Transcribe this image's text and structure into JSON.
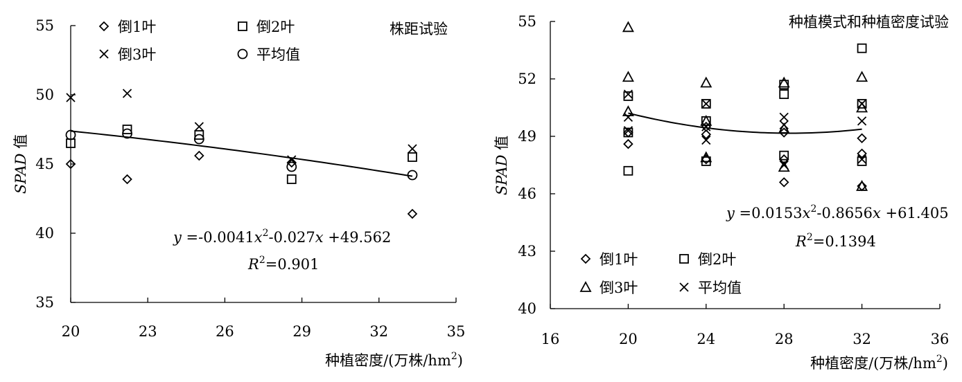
{
  "chart_data": [
    {
      "type": "scatter",
      "title": "株距试验",
      "xlabel": "种植密度/(万株/hm²)",
      "xlabel_main": "种植密度/(万株/hm",
      "xlabel_sup": "2",
      "xlabel_close": ")",
      "ylabel": "SPAD 值",
      "ylabel_italic": "SPAD",
      "ylabel_rest": " 值",
      "xlim": [
        20,
        35
      ],
      "ylim": [
        35,
        55
      ],
      "xticks": [
        20,
        23,
        26,
        29,
        32,
        35
      ],
      "yticks": [
        35,
        40,
        45,
        50,
        55
      ],
      "grid": false,
      "legend_position": "top",
      "series": [
        {
          "name": "倒1叶",
          "marker": "diamond",
          "x": [
            20,
            22.2,
            25,
            28.6,
            33.3
          ],
          "y": [
            45.0,
            43.9,
            45.6,
            45.1,
            41.4
          ]
        },
        {
          "name": "倒2叶",
          "marker": "square",
          "x": [
            20,
            22.2,
            25,
            28.6,
            33.3
          ],
          "y": [
            46.5,
            47.5,
            47.1,
            43.9,
            45.5
          ]
        },
        {
          "name": "倒3叶",
          "marker": "x",
          "x": [
            20,
            22.2,
            25,
            28.6,
            33.3
          ],
          "y": [
            49.8,
            50.1,
            47.7,
            45.3,
            46.1
          ]
        },
        {
          "name": "平均值",
          "marker": "circle",
          "x": [
            20,
            22.2,
            25,
            28.6,
            33.3
          ],
          "y": [
            47.1,
            47.2,
            46.8,
            44.8,
            44.2
          ]
        }
      ],
      "trendline": {
        "type": "polynomial",
        "degree": 2,
        "coefficients": [
          -0.0041,
          -0.027,
          49.562
        ],
        "x_range": [
          20,
          33.3
        ]
      },
      "equation": {
        "y": "y",
        "eq": " =-0.0041",
        "x1": "x",
        "sup1": "2",
        "mid": "-0.027",
        "x2": "x",
        "tail": " +49.562"
      },
      "r2": {
        "r": "R",
        "sup": "2",
        "value": "=0.901"
      }
    },
    {
      "type": "scatter",
      "title": "种植模式和种植密度试验",
      "xlabel": "种植密度/(万株/hm²)",
      "xlabel_main": "种植密度/(万株/hm",
      "xlabel_sup": "2",
      "xlabel_close": ")",
      "ylabel": "SPAD 值",
      "ylabel_italic": "SPAD",
      "ylabel_rest": " 值",
      "xlim": [
        16,
        36
      ],
      "ylim": [
        40,
        55
      ],
      "xticks": [
        16,
        20,
        24,
        28,
        32,
        36
      ],
      "yticks": [
        40,
        43,
        46,
        49,
        52,
        55
      ],
      "grid": false,
      "legend_position": "bottom-left",
      "series": [
        {
          "name": "倒1叶",
          "marker": "diamond",
          "x": [
            20,
            20,
            24,
            24,
            24,
            28,
            28,
            28,
            32,
            32,
            32
          ],
          "y": [
            48.6,
            49.2,
            47.8,
            49.1,
            49.5,
            46.6,
            49.2,
            47.8,
            46.4,
            48.1,
            48.9
          ]
        },
        {
          "name": "倒2叶",
          "marker": "square",
          "x": [
            20,
            20,
            20,
            24,
            24,
            24,
            28,
            28,
            28,
            32,
            32,
            32
          ],
          "y": [
            47.2,
            49.2,
            51.1,
            47.7,
            49.8,
            50.7,
            48.0,
            51.2,
            51.7,
            47.7,
            50.7,
            53.6
          ]
        },
        {
          "name": "倒3叶",
          "marker": "triangle",
          "x": [
            20,
            20,
            20,
            24,
            24,
            24,
            28,
            28,
            28,
            32,
            32,
            32
          ],
          "y": [
            50.3,
            52.1,
            54.7,
            47.9,
            49.8,
            51.8,
            47.4,
            49.4,
            51.8,
            46.4,
            50.5,
            52.1
          ]
        },
        {
          "name": "平均值",
          "marker": "x",
          "x": [
            20,
            20,
            20,
            24,
            24,
            24,
            28,
            28,
            28,
            32,
            32,
            32
          ],
          "y": [
            49.3,
            50.0,
            51.2,
            48.8,
            49.5,
            50.7,
            47.5,
            49.6,
            50.0,
            47.8,
            49.8,
            50.7
          ]
        }
      ],
      "trendline": {
        "type": "polynomial",
        "degree": 2,
        "coefficients": [
          0.0153,
          -0.8656,
          61.405
        ],
        "x_range": [
          20,
          32
        ]
      },
      "equation": {
        "y": "y",
        "eq": " =0.0153",
        "x1": "x",
        "sup1": "2",
        "mid": "-0.8656",
        "x2": "x",
        "tail": " +61.405"
      },
      "r2": {
        "r": "R",
        "sup": "2",
        "value": "=0.1394"
      }
    }
  ]
}
